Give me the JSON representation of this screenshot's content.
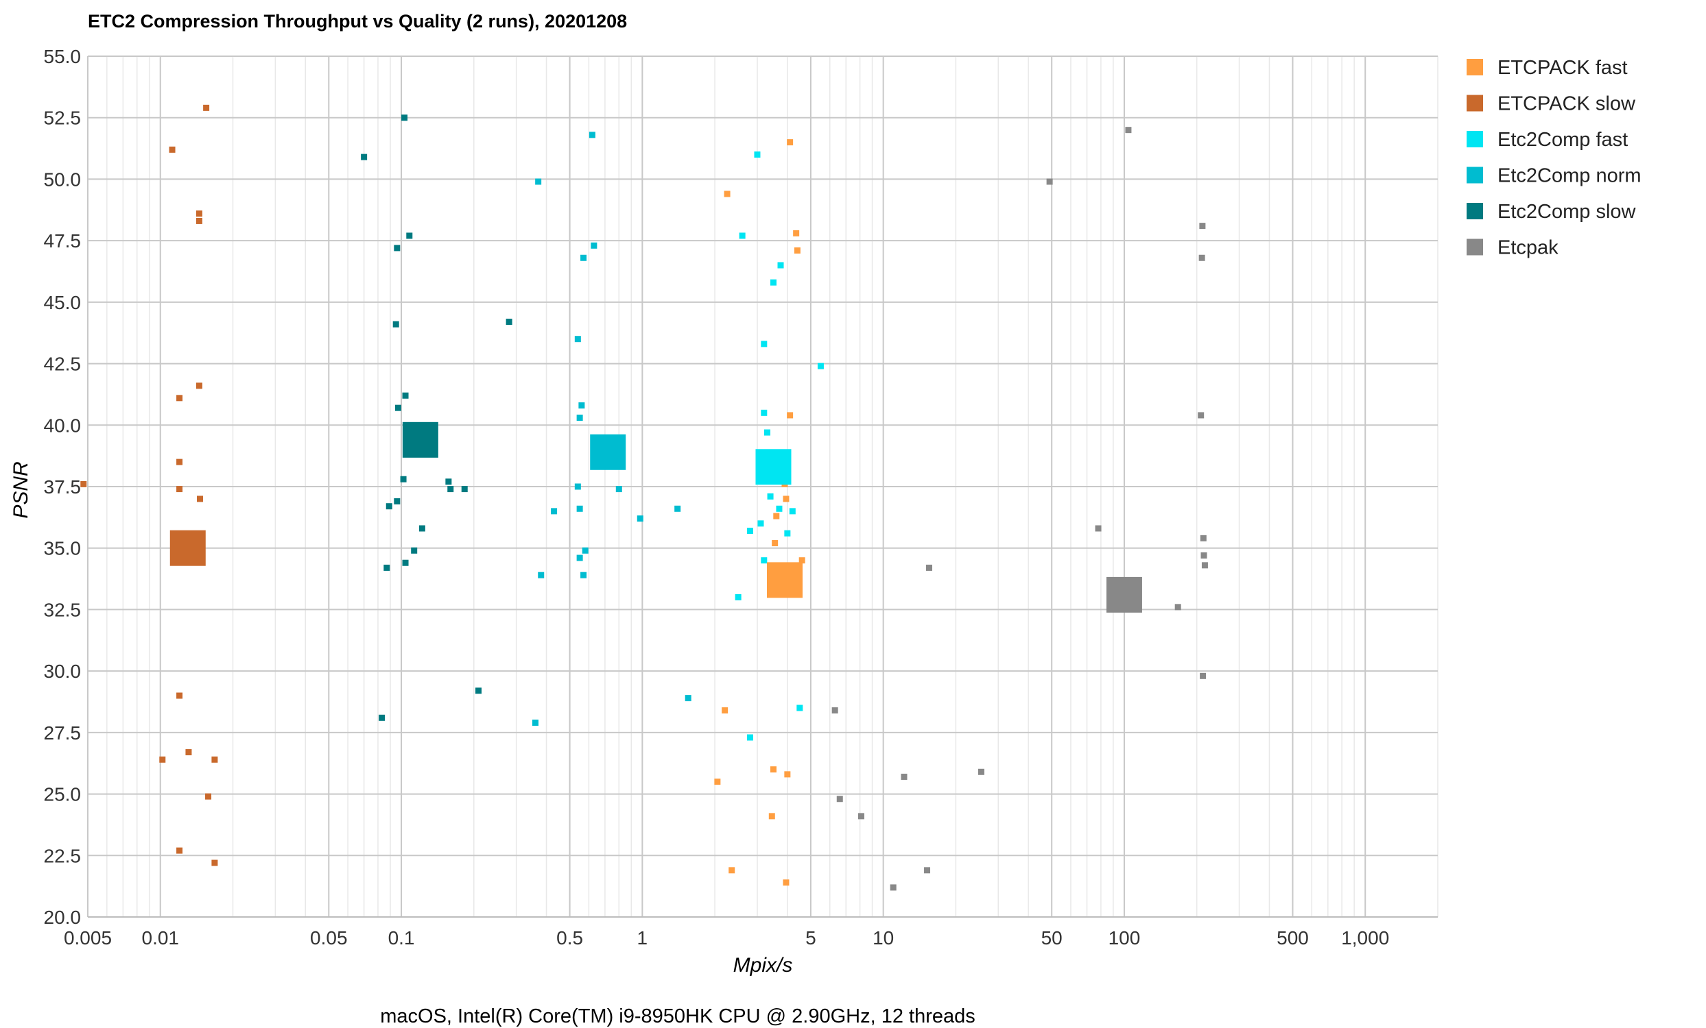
{
  "chart_data": {
    "type": "scatter",
    "title": "ETC2 Compression Throughput vs Quality (2 runs), 20201208",
    "xlabel": "Mpix/s",
    "ylabel": "PSNR",
    "caption": "macOS, Intel(R) Core(TM) i9-8950HK CPU @ 2.90GHz, 12 threads",
    "xscale": "log",
    "xlim": [
      0.005,
      2000
    ],
    "ylim": [
      20.0,
      55.0
    ],
    "grid": true,
    "legend_position": "right",
    "x_ticks": [
      {
        "value": 0.005,
        "label": "0.005"
      },
      {
        "value": 0.01,
        "label": "0.01"
      },
      {
        "value": 0.05,
        "label": "0.05"
      },
      {
        "value": 0.1,
        "label": "0.1"
      },
      {
        "value": 0.5,
        "label": "0.5"
      },
      {
        "value": 1,
        "label": "1"
      },
      {
        "value": 5,
        "label": "5"
      },
      {
        "value": 10,
        "label": "10"
      },
      {
        "value": 50,
        "label": "50"
      },
      {
        "value": 100,
        "label": "100"
      },
      {
        "value": 500,
        "label": "500"
      },
      {
        "value": 1000,
        "label": "1,000"
      }
    ],
    "y_ticks": [
      {
        "value": 20.0,
        "label": "20.0"
      },
      {
        "value": 22.5,
        "label": "22.5"
      },
      {
        "value": 25.0,
        "label": "25.0"
      },
      {
        "value": 27.5,
        "label": "27.5"
      },
      {
        "value": 30.0,
        "label": "30.0"
      },
      {
        "value": 32.5,
        "label": "32.5"
      },
      {
        "value": 35.0,
        "label": "35.0"
      },
      {
        "value": 37.5,
        "label": "37.5"
      },
      {
        "value": 40.0,
        "label": "40.0"
      },
      {
        "value": 42.5,
        "label": "42.5"
      },
      {
        "value": 45.0,
        "label": "45.0"
      },
      {
        "value": 47.5,
        "label": "47.5"
      },
      {
        "value": 50.0,
        "label": "50.0"
      },
      {
        "value": 52.5,
        "label": "52.5"
      },
      {
        "value": 55.0,
        "label": "55.0"
      }
    ],
    "series": [
      {
        "name": "ETCPACK fast",
        "color": "#FF9E40",
        "average": {
          "x": 3.9,
          "y": 33.7
        },
        "points": [
          [
            4.1,
            51.5
          ],
          [
            2.25,
            49.4
          ],
          [
            4.35,
            47.8
          ],
          [
            4.4,
            47.1
          ],
          [
            4.1,
            40.4
          ],
          [
            3.9,
            37.6
          ],
          [
            3.95,
            37.0
          ],
          [
            3.6,
            36.3
          ],
          [
            3.55,
            35.2
          ],
          [
            4.6,
            34.5
          ],
          [
            2.2,
            28.4
          ],
          [
            3.5,
            26.0
          ],
          [
            4.0,
            25.8
          ],
          [
            2.05,
            25.5
          ],
          [
            3.45,
            24.1
          ],
          [
            2.35,
            21.9
          ],
          [
            3.95,
            21.4
          ]
        ]
      },
      {
        "name": "ETCPACK slow",
        "color": "#C9692C",
        "average": {
          "x": 0.013,
          "y": 35.0
        },
        "points": [
          [
            0.0155,
            52.9
          ],
          [
            0.0112,
            51.2
          ],
          [
            0.0145,
            48.6
          ],
          [
            0.0145,
            48.3
          ],
          [
            0.0145,
            41.6
          ],
          [
            0.012,
            41.1
          ],
          [
            0.012,
            38.5
          ],
          [
            0.012,
            37.4
          ],
          [
            0.0146,
            37.0
          ],
          [
            0.0048,
            37.6
          ],
          [
            0.012,
            29.0
          ],
          [
            0.0131,
            26.7
          ],
          [
            0.0102,
            26.4
          ],
          [
            0.0168,
            26.4
          ],
          [
            0.0158,
            24.9
          ],
          [
            0.012,
            22.7
          ],
          [
            0.0168,
            22.2
          ]
        ]
      },
      {
        "name": "Etc2Comp fast",
        "color": "#00E5F2",
        "average": {
          "x": 3.5,
          "y": 38.3
        },
        "points": [
          [
            3.0,
            51.0
          ],
          [
            2.6,
            47.7
          ],
          [
            3.75,
            46.5
          ],
          [
            3.5,
            45.8
          ],
          [
            3.2,
            43.3
          ],
          [
            5.5,
            42.4
          ],
          [
            3.2,
            40.5
          ],
          [
            3.3,
            39.7
          ],
          [
            3.4,
            37.1
          ],
          [
            3.7,
            36.6
          ],
          [
            4.2,
            36.5
          ],
          [
            3.1,
            36.0
          ],
          [
            2.8,
            35.7
          ],
          [
            4.0,
            35.6
          ],
          [
            3.2,
            34.5
          ],
          [
            3.75,
            33.6
          ],
          [
            2.5,
            33.0
          ],
          [
            4.5,
            28.5
          ],
          [
            2.8,
            27.3
          ]
        ]
      },
      {
        "name": "Etc2Comp norm",
        "color": "#00BCD0",
        "average": {
          "x": 0.72,
          "y": 38.9
        },
        "points": [
          [
            0.62,
            51.8
          ],
          [
            0.37,
            49.9
          ],
          [
            0.63,
            47.3
          ],
          [
            0.57,
            46.8
          ],
          [
            0.54,
            43.5
          ],
          [
            0.56,
            40.8
          ],
          [
            0.55,
            40.3
          ],
          [
            0.54,
            37.5
          ],
          [
            0.8,
            37.4
          ],
          [
            0.43,
            36.5
          ],
          [
            0.55,
            36.6
          ],
          [
            1.4,
            36.6
          ],
          [
            0.98,
            36.2
          ],
          [
            0.58,
            34.9
          ],
          [
            0.55,
            34.6
          ],
          [
            0.38,
            33.9
          ],
          [
            0.57,
            33.9
          ],
          [
            1.55,
            28.9
          ],
          [
            0.36,
            27.9
          ]
        ]
      },
      {
        "name": "Etc2Comp slow",
        "color": "#007A80",
        "average": {
          "x": 0.12,
          "y": 39.4
        },
        "points": [
          [
            0.103,
            52.5
          ],
          [
            0.07,
            50.9
          ],
          [
            0.108,
            47.7
          ],
          [
            0.096,
            47.2
          ],
          [
            0.095,
            44.1
          ],
          [
            0.28,
            44.2
          ],
          [
            0.104,
            41.2
          ],
          [
            0.097,
            40.7
          ],
          [
            0.102,
            37.8
          ],
          [
            0.157,
            37.7
          ],
          [
            0.16,
            37.4
          ],
          [
            0.183,
            37.4
          ],
          [
            0.096,
            36.9
          ],
          [
            0.089,
            36.7
          ],
          [
            0.122,
            35.8
          ],
          [
            0.113,
            34.9
          ],
          [
            0.104,
            34.4
          ],
          [
            0.087,
            34.2
          ],
          [
            0.209,
            29.2
          ],
          [
            0.083,
            28.1
          ]
        ]
      },
      {
        "name": "Etcpak",
        "color": "#888888",
        "average": {
          "x": 100,
          "y": 33.1
        },
        "points": [
          [
            104,
            52.0
          ],
          [
            49,
            49.9
          ],
          [
            211,
            48.1
          ],
          [
            210,
            46.8
          ],
          [
            208,
            40.4
          ],
          [
            78,
            35.8
          ],
          [
            213,
            35.4
          ],
          [
            214,
            34.7
          ],
          [
            216,
            34.3
          ],
          [
            15.5,
            34.2
          ],
          [
            167,
            32.6
          ],
          [
            212,
            29.8
          ],
          [
            6.3,
            28.4
          ],
          [
            25.5,
            25.9
          ],
          [
            12.2,
            25.7
          ],
          [
            6.6,
            24.8
          ],
          [
            8.1,
            24.1
          ],
          [
            15.2,
            21.9
          ],
          [
            11.0,
            21.2
          ]
        ]
      }
    ]
  }
}
